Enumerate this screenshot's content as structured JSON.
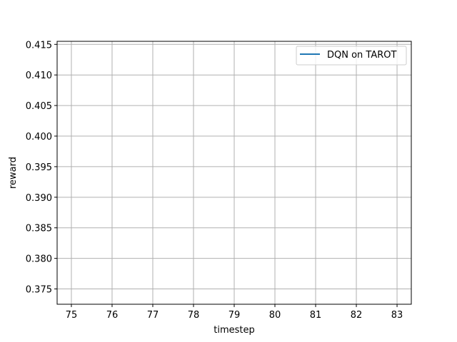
{
  "chart_data": {
    "type": "line",
    "title": "",
    "xlabel": "timestep",
    "ylabel": "reward",
    "xlim": [
      74.65,
      83.35
    ],
    "ylim": [
      0.3725,
      0.4155
    ],
    "xticks": [
      75,
      76,
      77,
      78,
      79,
      80,
      81,
      82,
      83
    ],
    "xtick_labels": [
      "75",
      "76",
      "77",
      "78",
      "79",
      "80",
      "81",
      "82",
      "83"
    ],
    "yticks": [
      0.375,
      0.38,
      0.385,
      0.39,
      0.395,
      0.4,
      0.405,
      0.41,
      0.415
    ],
    "ytick_labels": [
      "0.375",
      "0.380",
      "0.385",
      "0.390",
      "0.395",
      "0.400",
      "0.405",
      "0.410",
      "0.415"
    ],
    "grid": true,
    "legend_position": "top-right",
    "series": [
      {
        "name": "DQN on TAROT",
        "color": "#1f77b4",
        "x": [],
        "y": []
      }
    ]
  }
}
